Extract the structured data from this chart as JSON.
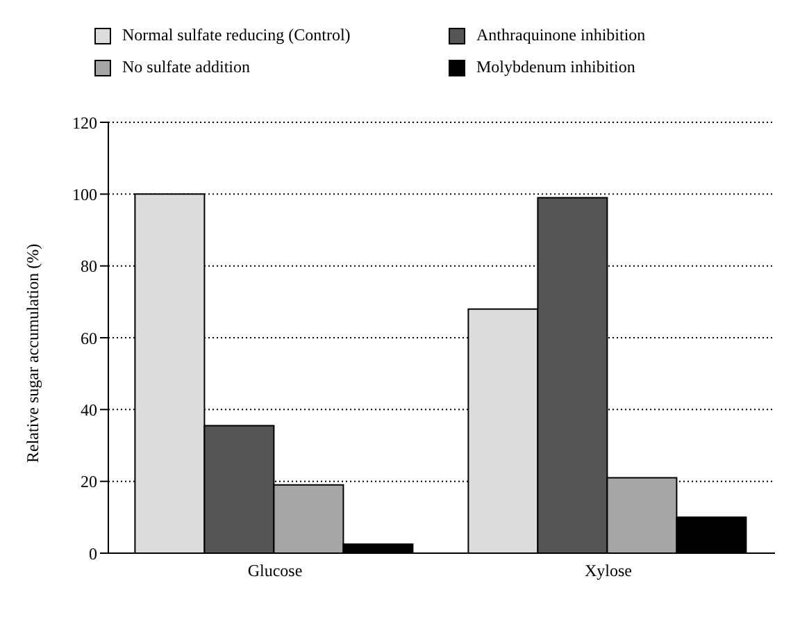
{
  "chart_data": {
    "type": "bar",
    "ylabel": "Relative sugar accumulation (%)",
    "categories": [
      "Glucose",
      "Xylose"
    ],
    "series": [
      {
        "name": "Normal sulfate reducing (Control)",
        "color": "#dcdcdc",
        "values": [
          100,
          68
        ]
      },
      {
        "name": "Anthraquinone inhibition",
        "color": "#555555",
        "values": [
          35.5,
          99
        ]
      },
      {
        "name": "No sulfate addition",
        "color": "#a6a6a6",
        "values": [
          19,
          21
        ]
      },
      {
        "name": "Molybdenum inhibition",
        "color": "#000000",
        "values": [
          2.5,
          10
        ]
      }
    ],
    "ylim": [
      0,
      120
    ],
    "yticks": [
      0,
      20,
      40,
      60,
      80,
      100,
      120
    ],
    "grid": "y",
    "legend": "top"
  }
}
